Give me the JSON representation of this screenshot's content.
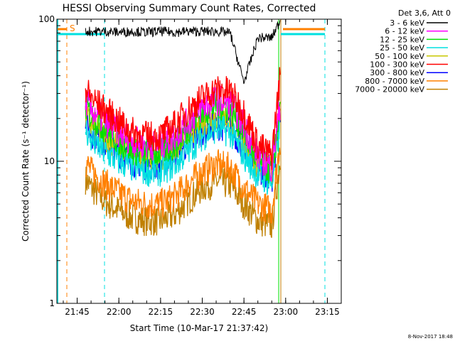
{
  "chart_data": {
    "type": "line",
    "title": "HESSI Observing Summary Count Rates, Corrected",
    "xlabel": "Start Time (10-Mar-17 21:37:42)",
    "ylabel": "Corrected Count Rate (s⁻¹ detector⁻¹)",
    "yscale": "log",
    "ylim": [
      1,
      100
    ],
    "xlim": [
      "21:37:42",
      "23:20:00"
    ],
    "xticks": [
      "21:45",
      "22:00",
      "22:15",
      "22:30",
      "22:45",
      "23:00",
      "23:15"
    ],
    "yticks": [
      "1",
      "10",
      "100"
    ],
    "legend_title": "Det 3,6, Att 0",
    "legend_position": "outside-right",
    "x_times": [
      "21:48",
      "21:50",
      "21:55",
      "22:00",
      "22:05",
      "22:10",
      "22:15",
      "22:20",
      "22:25",
      "22:30",
      "22:35",
      "22:40",
      "22:45",
      "22:50",
      "22:55",
      "22:58"
    ],
    "series": [
      {
        "name": "3 - 6 keV",
        "color": "#000000",
        "values": [
          82,
          82,
          82,
          81,
          82,
          81,
          82,
          81,
          82,
          82,
          82,
          80,
          36,
          74,
          74,
          98
        ]
      },
      {
        "name": "6 - 12 keV",
        "color": "#ff00ff",
        "values": [
          27,
          23,
          19,
          16,
          14,
          13,
          13,
          15,
          19,
          24,
          27,
          26,
          18,
          11,
          9,
          25
        ]
      },
      {
        "name": "12 - 25 keV",
        "color": "#00e000",
        "values": [
          25,
          21,
          17,
          14,
          12,
          11.5,
          11.5,
          13,
          17,
          22,
          25,
          24,
          16,
          10,
          8.5,
          24
        ]
      },
      {
        "name": "25 - 50 keV",
        "color": "#00e0e0",
        "values": [
          17,
          14,
          11.5,
          10,
          9,
          8.5,
          8.5,
          9.5,
          12,
          15,
          17,
          16,
          11,
          8,
          7,
          18
        ]
      },
      {
        "name": "50 - 100 keV",
        "color": "#c8c800",
        "values": [
          21,
          18,
          15,
          13,
          11.5,
          11,
          11,
          12.5,
          15,
          19,
          21,
          20,
          14,
          9.5,
          8.5,
          20
        ]
      },
      {
        "name": "100 - 300 keV",
        "color": "#ff0000",
        "values": [
          32,
          28,
          23,
          19,
          16,
          15,
          15,
          18,
          23,
          28,
          32,
          31,
          22,
          13,
          11,
          40
        ]
      },
      {
        "name": "300 - 800 keV",
        "color": "#0000ff",
        "values": [
          19,
          16,
          13.5,
          11.5,
          10,
          9.5,
          9.5,
          11,
          13.5,
          16.5,
          18,
          17.5,
          12.5,
          8.5,
          7.5,
          21
        ]
      },
      {
        "name": "800 - 7000 keV",
        "color": "#ff8000",
        "values": [
          10,
          8.5,
          7,
          6,
          5.2,
          5,
          5,
          5.6,
          7,
          8.5,
          9.5,
          9,
          6.5,
          5,
          4.5,
          14
        ]
      },
      {
        "name": "7000 - 20000 keV",
        "color": "#c08000",
        "values": [
          7.5,
          6.5,
          5.2,
          4.5,
          4,
          3.8,
          3.8,
          4.2,
          5.3,
          6.5,
          7.2,
          6.8,
          5,
          3.8,
          3.5,
          10
        ]
      }
    ],
    "markers": [
      {
        "label": "S",
        "color": "#ff8000"
      }
    ],
    "footer": "8-Nov-2017 18:48"
  }
}
